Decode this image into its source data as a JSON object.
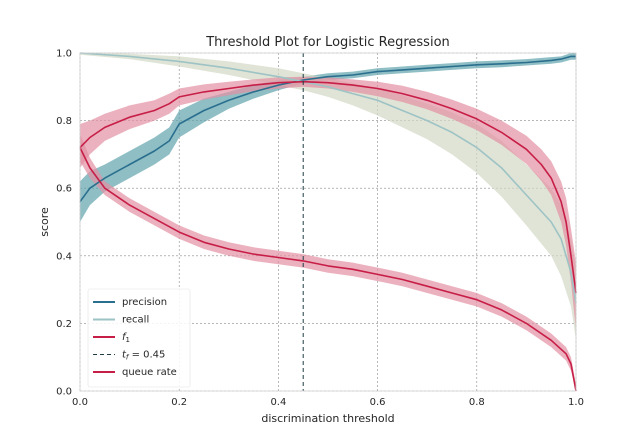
{
  "chart_data": {
    "type": "line",
    "title": "Threshold Plot for Logistic Regression",
    "xlabel": "discrimination threshold",
    "ylabel": "score",
    "xlim": [
      0,
      1
    ],
    "ylim": [
      0,
      1
    ],
    "xticks": [
      "0.0",
      "0.2",
      "0.4",
      "0.6",
      "0.8",
      "1.0"
    ],
    "yticks": [
      "0.0",
      "0.2",
      "0.4",
      "0.6",
      "0.8",
      "1.0"
    ],
    "grid": true,
    "legend_position": "lower-left",
    "threshold": {
      "label": "t_f = 0.45",
      "label_prefix": "t",
      "label_sub": "f",
      "label_suffix": " = 0.45",
      "value": 0.45,
      "color": "#1f3b44"
    },
    "series": [
      {
        "name": "precision",
        "color": "#2a6f8e",
        "band_color": "#5fa3ad",
        "x": [
          0.0,
          0.02,
          0.05,
          0.1,
          0.15,
          0.18,
          0.2,
          0.25,
          0.3,
          0.35,
          0.4,
          0.45,
          0.5,
          0.55,
          0.6,
          0.65,
          0.7,
          0.75,
          0.8,
          0.85,
          0.9,
          0.95,
          0.97,
          0.99,
          1.0
        ],
        "y": [
          0.56,
          0.6,
          0.63,
          0.67,
          0.71,
          0.74,
          0.79,
          0.83,
          0.86,
          0.885,
          0.905,
          0.92,
          0.93,
          0.935,
          0.945,
          0.95,
          0.955,
          0.96,
          0.965,
          0.968,
          0.972,
          0.978,
          0.982,
          0.99,
          0.99
        ],
        "lo": [
          0.5,
          0.55,
          0.59,
          0.63,
          0.67,
          0.7,
          0.75,
          0.795,
          0.835,
          0.865,
          0.89,
          0.91,
          0.92,
          0.925,
          0.935,
          0.94,
          0.945,
          0.95,
          0.955,
          0.958,
          0.963,
          0.968,
          0.972,
          0.98,
          0.98
        ],
        "hi": [
          0.62,
          0.65,
          0.67,
          0.71,
          0.75,
          0.78,
          0.83,
          0.865,
          0.885,
          0.905,
          0.92,
          0.93,
          0.94,
          0.945,
          0.955,
          0.96,
          0.965,
          0.97,
          0.975,
          0.978,
          0.982,
          0.988,
          0.99,
          1.0,
          1.0
        ]
      },
      {
        "name": "recall",
        "color": "#9ec3c5",
        "band_color": "#d2d9c5",
        "x": [
          0.0,
          0.1,
          0.2,
          0.3,
          0.4,
          0.45,
          0.5,
          0.55,
          0.6,
          0.65,
          0.7,
          0.75,
          0.8,
          0.85,
          0.9,
          0.95,
          0.97,
          0.99,
          1.0
        ],
        "y": [
          1.0,
          0.99,
          0.975,
          0.955,
          0.93,
          0.915,
          0.9,
          0.88,
          0.86,
          0.83,
          0.8,
          0.765,
          0.72,
          0.66,
          0.58,
          0.5,
          0.45,
          0.35,
          0.26
        ],
        "lo": [
          0.995,
          0.982,
          0.96,
          0.935,
          0.905,
          0.89,
          0.87,
          0.845,
          0.815,
          0.78,
          0.745,
          0.7,
          0.645,
          0.575,
          0.49,
          0.4,
          0.34,
          0.25,
          0.15
        ],
        "hi": [
          1.0,
          0.998,
          0.99,
          0.975,
          0.955,
          0.94,
          0.925,
          0.91,
          0.895,
          0.875,
          0.85,
          0.825,
          0.79,
          0.74,
          0.67,
          0.6,
          0.55,
          0.45,
          0.36
        ]
      },
      {
        "name": "f1",
        "label_base": "f",
        "label_sub": "1",
        "color": "#c71e47",
        "band_color": "#e290a3",
        "x": [
          0.0,
          0.02,
          0.05,
          0.1,
          0.15,
          0.18,
          0.2,
          0.25,
          0.3,
          0.35,
          0.4,
          0.45,
          0.5,
          0.55,
          0.6,
          0.65,
          0.7,
          0.75,
          0.8,
          0.85,
          0.9,
          0.93,
          0.95,
          0.97,
          0.98,
          0.99,
          1.0
        ],
        "y": [
          0.72,
          0.75,
          0.78,
          0.81,
          0.83,
          0.85,
          0.87,
          0.885,
          0.895,
          0.905,
          0.912,
          0.915,
          0.912,
          0.905,
          0.895,
          0.88,
          0.86,
          0.835,
          0.805,
          0.765,
          0.715,
          0.67,
          0.63,
          0.56,
          0.5,
          0.4,
          0.29
        ],
        "lo": [
          0.66,
          0.7,
          0.74,
          0.775,
          0.8,
          0.82,
          0.845,
          0.862,
          0.875,
          0.887,
          0.895,
          0.9,
          0.895,
          0.885,
          0.872,
          0.855,
          0.833,
          0.805,
          0.772,
          0.728,
          0.672,
          0.622,
          0.58,
          0.5,
          0.43,
          0.32,
          0.18
        ],
        "hi": [
          0.79,
          0.8,
          0.82,
          0.845,
          0.86,
          0.88,
          0.895,
          0.907,
          0.915,
          0.922,
          0.928,
          0.93,
          0.928,
          0.922,
          0.915,
          0.903,
          0.885,
          0.862,
          0.835,
          0.8,
          0.755,
          0.715,
          0.68,
          0.62,
          0.57,
          0.48,
          0.38
        ]
      },
      {
        "name": "queue rate",
        "color": "#c71e47",
        "band_color": "#e290a3",
        "x": [
          0.0,
          0.02,
          0.05,
          0.1,
          0.15,
          0.2,
          0.25,
          0.3,
          0.35,
          0.4,
          0.45,
          0.5,
          0.55,
          0.6,
          0.65,
          0.7,
          0.75,
          0.8,
          0.85,
          0.9,
          0.95,
          0.98,
          0.99,
          1.0
        ],
        "y": [
          0.72,
          0.66,
          0.6,
          0.55,
          0.51,
          0.47,
          0.44,
          0.42,
          0.405,
          0.395,
          0.385,
          0.37,
          0.36,
          0.345,
          0.33,
          0.31,
          0.29,
          0.27,
          0.24,
          0.2,
          0.15,
          0.11,
          0.08,
          0.0
        ],
        "lo": [
          0.68,
          0.63,
          0.58,
          0.53,
          0.49,
          0.45,
          0.42,
          0.4,
          0.385,
          0.375,
          0.365,
          0.35,
          0.34,
          0.325,
          0.31,
          0.29,
          0.27,
          0.25,
          0.22,
          0.18,
          0.13,
          0.09,
          0.06,
          0.0
        ],
        "hi": [
          0.76,
          0.69,
          0.62,
          0.57,
          0.53,
          0.49,
          0.46,
          0.44,
          0.425,
          0.415,
          0.405,
          0.39,
          0.38,
          0.365,
          0.35,
          0.33,
          0.31,
          0.29,
          0.26,
          0.22,
          0.17,
          0.13,
          0.1,
          0.02
        ]
      }
    ]
  }
}
